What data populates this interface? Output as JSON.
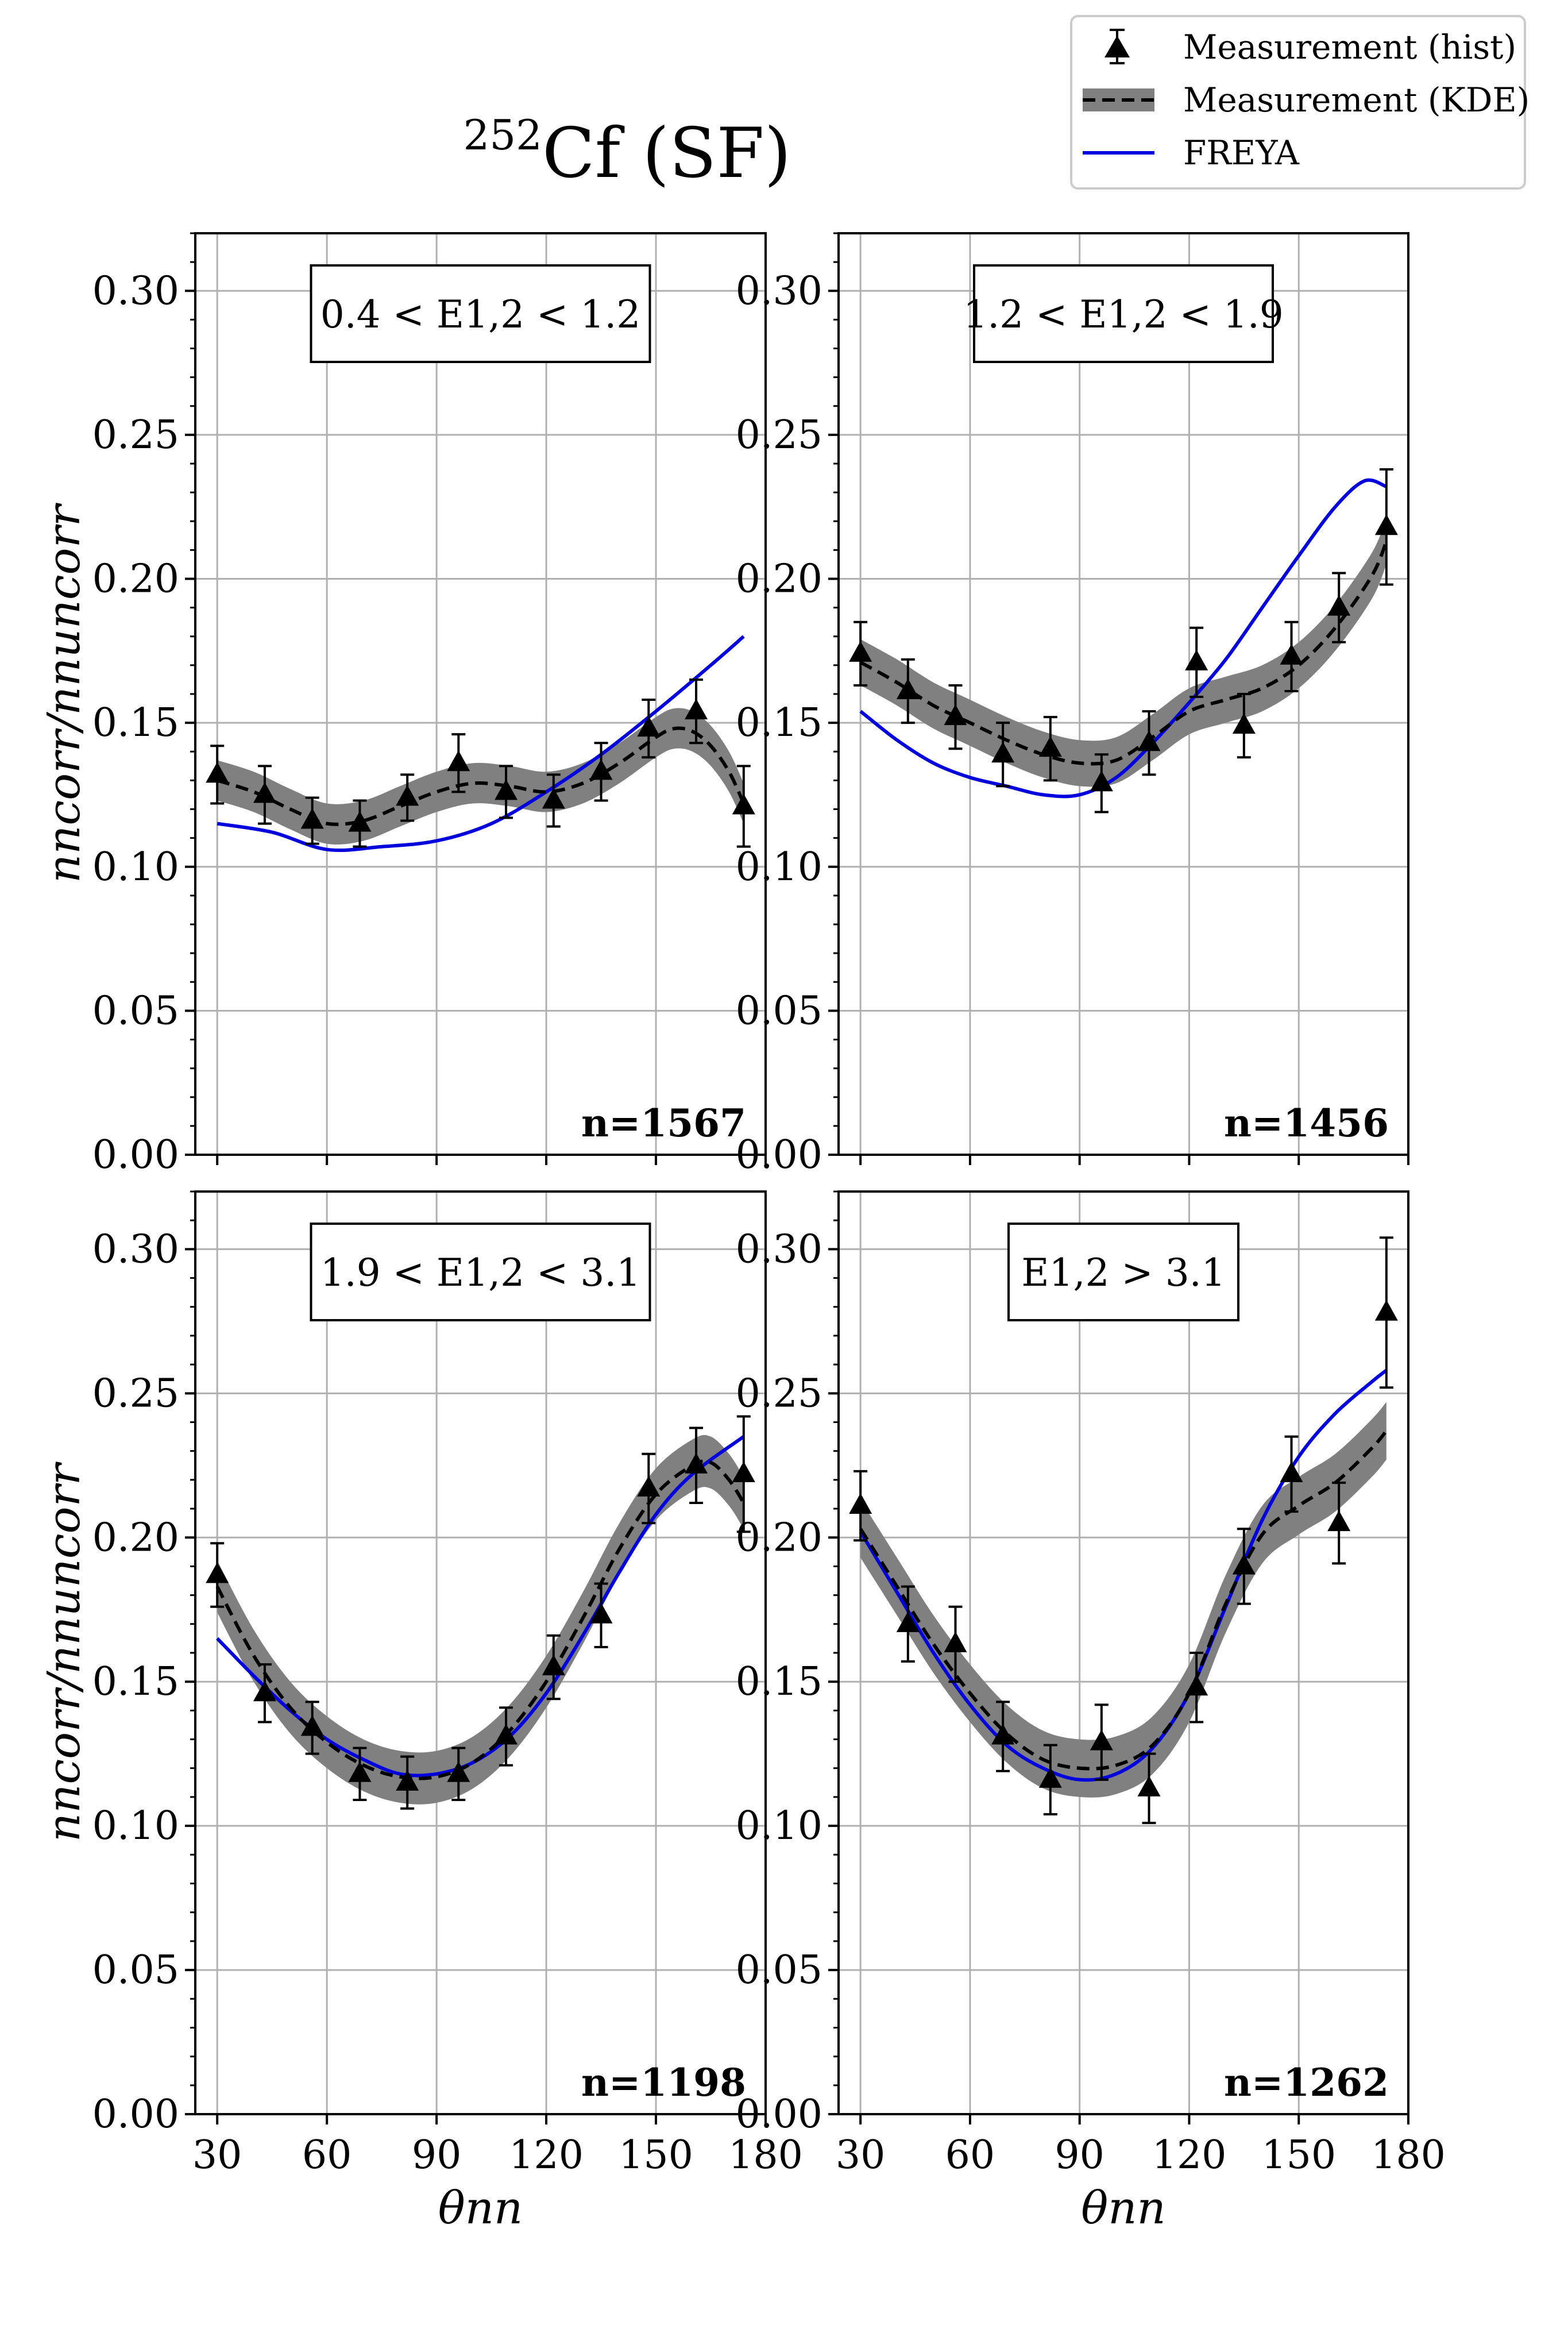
{
  "title": {
    "sup": "252",
    "main": "Cf (SF)"
  },
  "legend": {
    "items": [
      {
        "label": "Measurement (hist)",
        "kind": "hist"
      },
      {
        "label": "Measurement (KDE)",
        "kind": "kde"
      },
      {
        "label": "FREYA",
        "kind": "freya"
      }
    ]
  },
  "axes": {
    "xlabel": "θnn",
    "ylabel": "nncorr/nnuncorr",
    "xlim": [
      24,
      180
    ],
    "ylim": [
      0,
      0.32
    ],
    "xticks": [
      30,
      60,
      90,
      120,
      150,
      180
    ],
    "yticks": [
      0.0,
      0.05,
      0.1,
      0.15,
      0.2,
      0.25,
      0.3
    ],
    "ytick_labels": [
      "0.00",
      "0.05",
      "0.10",
      "0.15",
      "0.20",
      "0.25",
      "0.30"
    ],
    "grid": true
  },
  "colors": {
    "freya": "#0000dd",
    "kde_band": "#808080",
    "kde_line": "#000000",
    "hist": "#000000"
  },
  "chart_data": [
    {
      "type": "line",
      "panel": "top-left",
      "energy_label": "0.4 < E1,2 < 1.2",
      "count_label": "n=1567",
      "hist": {
        "x": [
          30,
          43,
          56,
          69,
          82,
          96,
          109,
          122,
          135,
          148,
          161,
          174
        ],
        "y": [
          0.132,
          0.125,
          0.116,
          0.115,
          0.124,
          0.136,
          0.126,
          0.123,
          0.133,
          0.148,
          0.154,
          0.121
        ],
        "err": [
          0.01,
          0.01,
          0.008,
          0.008,
          0.008,
          0.01,
          0.009,
          0.009,
          0.01,
          0.01,
          0.011,
          0.014
        ]
      },
      "kde": {
        "x": [
          30,
          40,
          50,
          60,
          70,
          80,
          90,
          100,
          110,
          120,
          130,
          140,
          150,
          155,
          160,
          165,
          170,
          174
        ],
        "y": [
          0.13,
          0.126,
          0.12,
          0.115,
          0.116,
          0.121,
          0.126,
          0.129,
          0.128,
          0.126,
          0.129,
          0.136,
          0.145,
          0.148,
          0.147,
          0.142,
          0.133,
          0.122
        ],
        "band": 0.007
      },
      "freya": {
        "x": [
          30,
          45,
          60,
          75,
          90,
          105,
          120,
          135,
          150,
          165,
          174
        ],
        "y": [
          0.115,
          0.112,
          0.106,
          0.107,
          0.109,
          0.115,
          0.126,
          0.139,
          0.154,
          0.17,
          0.18
        ]
      }
    },
    {
      "type": "line",
      "panel": "top-right",
      "energy_label": "1.2 < E1,2 < 1.9",
      "count_label": "n=1456",
      "hist": {
        "x": [
          30,
          43,
          56,
          69,
          82,
          96,
          109,
          122,
          135,
          148,
          161,
          174
        ],
        "y": [
          0.174,
          0.161,
          0.152,
          0.139,
          0.141,
          0.129,
          0.143,
          0.171,
          0.149,
          0.173,
          0.19,
          0.218
        ],
        "err": [
          0.011,
          0.011,
          0.011,
          0.011,
          0.011,
          0.01,
          0.011,
          0.012,
          0.011,
          0.012,
          0.012,
          0.02
        ]
      },
      "kde": {
        "x": [
          30,
          40,
          50,
          60,
          70,
          80,
          90,
          100,
          110,
          120,
          130,
          140,
          150,
          160,
          170,
          174
        ],
        "y": [
          0.171,
          0.164,
          0.156,
          0.15,
          0.144,
          0.139,
          0.136,
          0.137,
          0.145,
          0.154,
          0.158,
          0.162,
          0.17,
          0.183,
          0.201,
          0.213
        ],
        "band": 0.008
      },
      "freya": {
        "x": [
          30,
          40,
          50,
          60,
          70,
          80,
          90,
          100,
          110,
          120,
          130,
          140,
          150,
          160,
          168,
          174
        ],
        "y": [
          0.154,
          0.144,
          0.136,
          0.131,
          0.128,
          0.125,
          0.125,
          0.131,
          0.143,
          0.157,
          0.172,
          0.19,
          0.208,
          0.225,
          0.234,
          0.232
        ]
      }
    },
    {
      "type": "line",
      "panel": "bottom-left",
      "energy_label": "1.9 < E1,2 < 3.1",
      "count_label": "n=1198",
      "hist": {
        "x": [
          30,
          43,
          56,
          69,
          82,
          96,
          109,
          122,
          135,
          148,
          161,
          174
        ],
        "y": [
          0.187,
          0.146,
          0.134,
          0.118,
          0.115,
          0.118,
          0.131,
          0.155,
          0.173,
          0.217,
          0.225,
          0.222
        ],
        "err": [
          0.011,
          0.01,
          0.009,
          0.009,
          0.009,
          0.009,
          0.01,
          0.011,
          0.011,
          0.012,
          0.013,
          0.02
        ]
      },
      "kde": {
        "x": [
          30,
          40,
          50,
          60,
          70,
          80,
          90,
          100,
          110,
          120,
          130,
          140,
          150,
          160,
          165,
          170,
          174
        ],
        "y": [
          0.183,
          0.159,
          0.141,
          0.129,
          0.121,
          0.117,
          0.117,
          0.122,
          0.133,
          0.15,
          0.172,
          0.196,
          0.215,
          0.225,
          0.226,
          0.22,
          0.212
        ],
        "band": 0.009
      },
      "freya": {
        "x": [
          30,
          40,
          50,
          60,
          70,
          80,
          90,
          100,
          110,
          120,
          130,
          140,
          150,
          160,
          174
        ],
        "y": [
          0.165,
          0.152,
          0.14,
          0.13,
          0.123,
          0.118,
          0.118,
          0.122,
          0.131,
          0.146,
          0.166,
          0.188,
          0.208,
          0.222,
          0.235
        ]
      }
    },
    {
      "type": "line",
      "panel": "bottom-right",
      "energy_label": "E1,2 > 3.1",
      "count_label": "n=1262",
      "hist": {
        "x": [
          30,
          43,
          56,
          69,
          82,
          96,
          109,
          122,
          135,
          148,
          161,
          174
        ],
        "y": [
          0.211,
          0.17,
          0.163,
          0.131,
          0.116,
          0.129,
          0.113,
          0.148,
          0.19,
          0.222,
          0.205,
          0.278
        ],
        "err": [
          0.012,
          0.013,
          0.013,
          0.012,
          0.012,
          0.013,
          0.012,
          0.012,
          0.013,
          0.013,
          0.014,
          0.026
        ]
      },
      "kde": {
        "x": [
          30,
          40,
          50,
          60,
          70,
          80,
          90,
          100,
          110,
          120,
          130,
          140,
          150,
          160,
          170,
          174
        ],
        "y": [
          0.203,
          0.183,
          0.163,
          0.146,
          0.132,
          0.123,
          0.12,
          0.121,
          0.128,
          0.146,
          0.177,
          0.201,
          0.211,
          0.219,
          0.231,
          0.237
        ],
        "band": 0.01
      },
      "freya": {
        "x": [
          30,
          40,
          50,
          60,
          70,
          80,
          90,
          100,
          110,
          120,
          130,
          140,
          150,
          160,
          170,
          174
        ],
        "y": [
          0.202,
          0.181,
          0.16,
          0.142,
          0.128,
          0.12,
          0.116,
          0.118,
          0.127,
          0.146,
          0.176,
          0.206,
          0.228,
          0.243,
          0.254,
          0.258
        ]
      }
    }
  ]
}
